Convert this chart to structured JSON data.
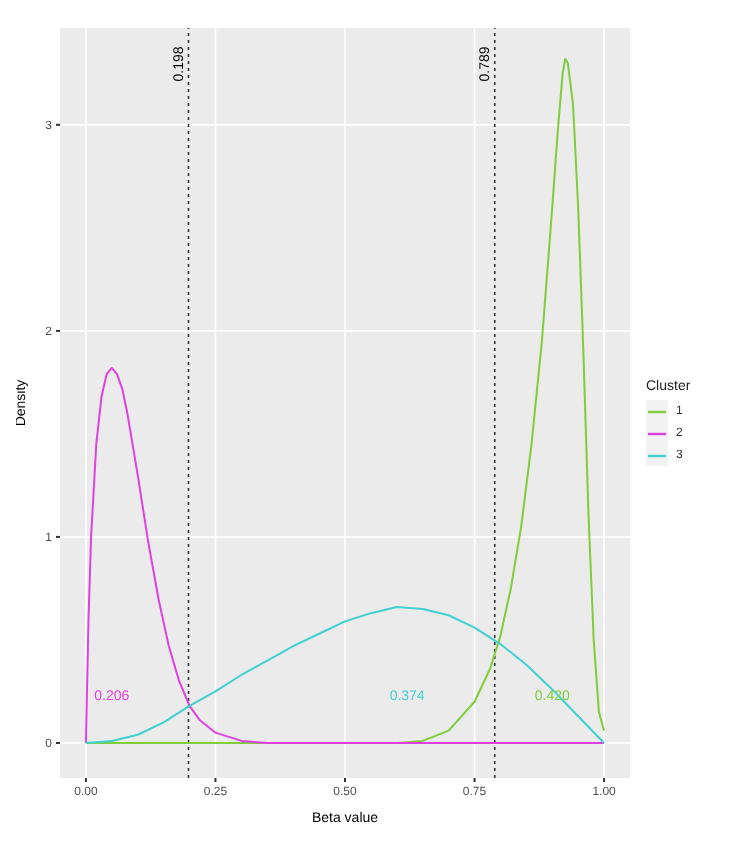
{
  "chart_data": {
    "type": "line",
    "xlabel": "Beta value",
    "ylabel": "Density",
    "legend_title": "Cluster",
    "xlim": [
      -0.05,
      1.05
    ],
    "ylim": [
      -0.17,
      3.47
    ],
    "xticks": [
      {
        "value": 0,
        "label": "0.00"
      },
      {
        "value": 0.25,
        "label": "0.25"
      },
      {
        "value": 0.5,
        "label": "0.50"
      },
      {
        "value": 0.75,
        "label": "0.75"
      },
      {
        "value": 1,
        "label": "1.00"
      }
    ],
    "yticks": [
      0,
      1,
      2,
      3
    ],
    "grid": true,
    "legend": "right",
    "marker": "none",
    "line_style": "solid",
    "series": [
      {
        "name": "1",
        "color": "#7fcd3a",
        "x": [
          0,
          0.5,
          0.6,
          0.65,
          0.7,
          0.75,
          0.78,
          0.8,
          0.82,
          0.84,
          0.86,
          0.88,
          0.9,
          0.91,
          0.92,
          0.925,
          0.93,
          0.94,
          0.95,
          0.96,
          0.97,
          0.98,
          0.99,
          1
        ],
        "values": [
          0,
          0,
          0,
          0.01,
          0.06,
          0.2,
          0.36,
          0.52,
          0.75,
          1.05,
          1.45,
          1.95,
          2.6,
          2.95,
          3.25,
          3.32,
          3.3,
          3.1,
          2.6,
          1.9,
          1.1,
          0.5,
          0.15,
          0.06
        ]
      },
      {
        "name": "2",
        "color": "#e040e0",
        "x": [
          0,
          0.005,
          0.01,
          0.02,
          0.03,
          0.04,
          0.05,
          0.06,
          0.07,
          0.08,
          0.1,
          0.12,
          0.14,
          0.16,
          0.18,
          0.2,
          0.22,
          0.25,
          0.3,
          0.35,
          1
        ],
        "values": [
          0,
          0.6,
          1.0,
          1.45,
          1.68,
          1.79,
          1.82,
          1.79,
          1.72,
          1.6,
          1.3,
          0.98,
          0.7,
          0.47,
          0.3,
          0.18,
          0.11,
          0.05,
          0.01,
          0,
          0
        ]
      },
      {
        "name": "3",
        "color": "#40d0d0",
        "x": [
          0,
          0.05,
          0.1,
          0.15,
          0.2,
          0.25,
          0.3,
          0.35,
          0.4,
          0.45,
          0.5,
          0.55,
          0.6,
          0.65,
          0.7,
          0.75,
          0.8,
          0.85,
          0.9,
          0.95,
          1
        ],
        "values": [
          0,
          0.01,
          0.04,
          0.1,
          0.18,
          0.25,
          0.33,
          0.4,
          0.47,
          0.53,
          0.59,
          0.63,
          0.66,
          0.65,
          0.62,
          0.56,
          0.48,
          0.38,
          0.26,
          0.13,
          0
        ]
      }
    ],
    "ref_lines": [
      {
        "axis": "x",
        "value": 0.198,
        "label": "0.198",
        "line_style": "dotted"
      },
      {
        "axis": "x",
        "value": 0.789,
        "label": "0.789",
        "line_style": "dotted"
      }
    ],
    "annotations": [
      "0.206",
      "0.374",
      "0.420"
    ]
  }
}
